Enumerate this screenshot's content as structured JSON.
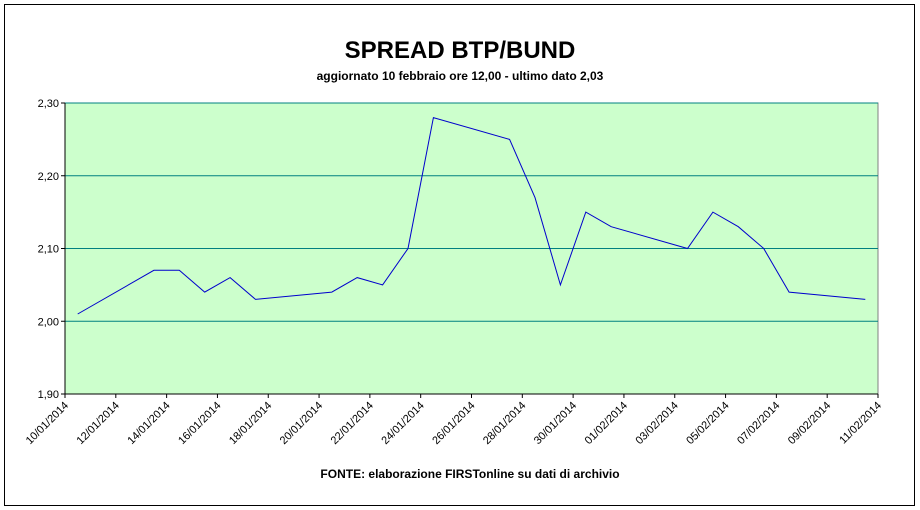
{
  "chart_data": {
    "type": "line",
    "title": "SPREAD BTP/BUND",
    "subtitle": "aggiornato 10 febbraio ore 12,00 - ultimo dato 2,03",
    "source": "FONTE: elaborazione FIRSTonline su dati di archivio",
    "x": [
      "10/01/2014",
      "13/01/2014",
      "14/01/2014",
      "15/01/2014",
      "16/01/2014",
      "17/01/2014",
      "20/01/2014",
      "21/01/2014",
      "22/01/2014",
      "23/01/2014",
      "24/01/2014",
      "27/01/2014",
      "28/01/2014",
      "29/01/2014",
      "30/01/2014",
      "31/01/2014",
      "03/02/2014",
      "04/02/2014",
      "05/02/2014",
      "06/02/2014",
      "07/02/2014",
      "10/02/2014"
    ],
    "values": [
      2.01,
      2.07,
      2.07,
      2.04,
      2.06,
      2.03,
      2.04,
      2.06,
      2.05,
      2.1,
      2.28,
      2.25,
      2.17,
      2.05,
      2.15,
      2.13,
      2.1,
      2.15,
      2.13,
      2.1,
      2.04,
      2.03
    ],
    "color": "#0000cc",
    "plot_background": "#ccffcc",
    "grid_color": "#008080",
    "grid": true,
    "xlim": [
      "10/01/2014",
      "11/02/2014"
    ],
    "xticks": [
      "10/01/2014",
      "12/01/2014",
      "14/01/2014",
      "16/01/2014",
      "18/01/2014",
      "20/01/2014",
      "22/01/2014",
      "24/01/2014",
      "26/01/2014",
      "28/01/2014",
      "30/01/2014",
      "01/02/2014",
      "03/02/2014",
      "05/02/2014",
      "07/02/2014",
      "09/02/2014",
      "11/02/2014"
    ],
    "ylim": [
      1.9,
      2.3
    ],
    "yticks": [
      {
        "value": 1.9,
        "label": "1,90"
      },
      {
        "value": 2.0,
        "label": "2,00"
      },
      {
        "value": 2.1,
        "label": "2,10"
      },
      {
        "value": 2.2,
        "label": "2,20"
      },
      {
        "value": 2.3,
        "label": "2,30"
      }
    ]
  }
}
